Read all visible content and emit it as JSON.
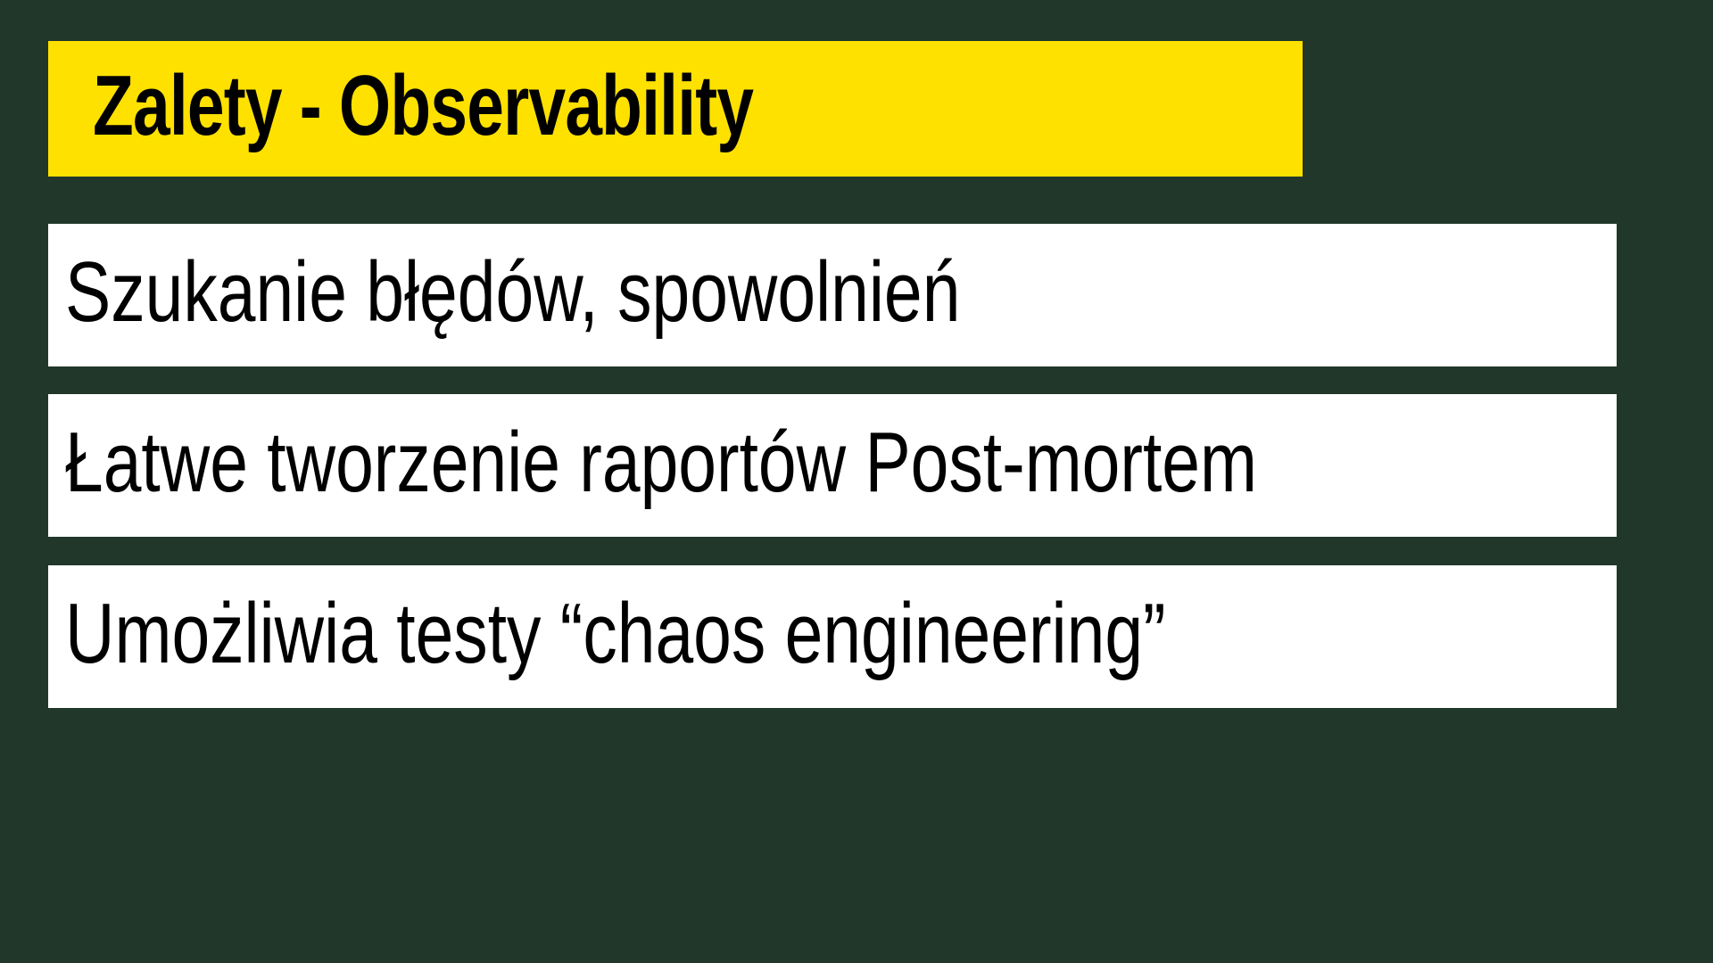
{
  "slide": {
    "title": "Zalety - Observability",
    "items": [
      "Szukanie błędów, spowolnień",
      "Łatwe tworzenie raportów Post-mortem",
      "Umożliwia testy “chaos engineering”"
    ]
  },
  "colors": {
    "background": "#21372a",
    "title_background": "#ffe100",
    "item_background": "#ffffff",
    "text": "#000000"
  }
}
